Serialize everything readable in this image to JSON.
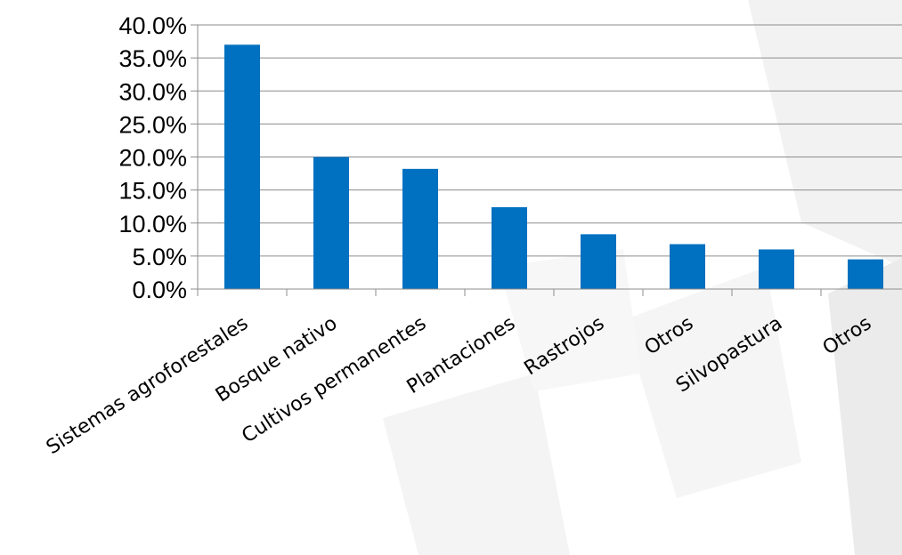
{
  "chart_data": {
    "type": "bar",
    "title": "",
    "xlabel": "",
    "ylabel": "",
    "categories": [
      "Sistemas agroforestales",
      "Bosque nativo",
      "Cultivos permanentes",
      "Plantaciones",
      "Rastrojos",
      "Otros",
      "Silvopastura",
      "Otros"
    ],
    "values": [
      37.0,
      20.0,
      18.2,
      12.4,
      8.3,
      6.8,
      6.0,
      4.5
    ],
    "ylim": [
      0,
      40
    ],
    "yticks": [
      "0.0%",
      "5.0%",
      "10.0%",
      "15.0%",
      "20.0%",
      "25.0%",
      "30.0%",
      "35.0%",
      "40.0%"
    ],
    "grid": true,
    "legend": "none",
    "bar_color": "#0070C0",
    "grid_color": "#8C8C8C",
    "axis_color": "#8C8C8C"
  }
}
